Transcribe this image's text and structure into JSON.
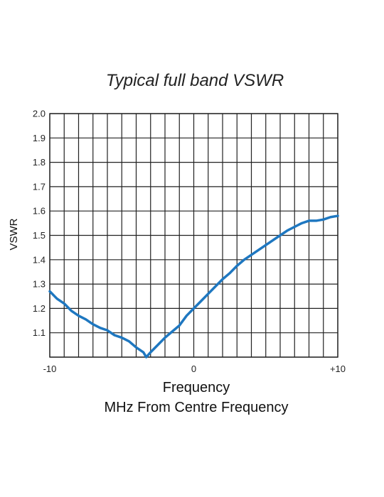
{
  "chart_data": {
    "type": "line",
    "title": "Typical full band VSWR",
    "xlabel": "Frequency",
    "xlabel_sub": "MHz From Centre Frequency",
    "ylabel": "VSWR",
    "xlim": [
      -10,
      10
    ],
    "ylim": [
      1.0,
      2.0
    ],
    "x_ticks": [
      -10,
      -9,
      -8,
      -7,
      -6,
      -5,
      -4,
      -3,
      -2,
      -1,
      0,
      1,
      2,
      3,
      4,
      5,
      6,
      7,
      8,
      9,
      10
    ],
    "x_tick_labels": [
      {
        "value": -10,
        "label": "-10"
      },
      {
        "value": 0,
        "label": "0"
      },
      {
        "value": 10,
        "label": "+10"
      }
    ],
    "y_tick_labels": [
      "2.0",
      "1.9",
      "1.8",
      "1.7",
      "1.6",
      "1.5",
      "1.4",
      "1.3",
      "1.2",
      "1.1"
    ],
    "y_tick_values": [
      2.0,
      1.9,
      1.8,
      1.7,
      1.6,
      1.5,
      1.4,
      1.3,
      1.2,
      1.1
    ],
    "grid": true,
    "line_color": "#1e77c0",
    "series": [
      {
        "x": [
          -10,
          -9.5,
          -9,
          -8.5,
          -8,
          -7.5,
          -7,
          -6.5,
          -6,
          -5.5,
          -5,
          -4.5,
          -4,
          -3.5,
          -3.3,
          -3,
          -2.5,
          -2,
          -1.5,
          -1,
          -0.5,
          0,
          0.5,
          1,
          1.5,
          2,
          2.5,
          3,
          3.5,
          4,
          4.5,
          5,
          5.5,
          6,
          6.5,
          7,
          7.5,
          8,
          8.5,
          9,
          9.5,
          10
        ],
        "y": [
          1.27,
          1.24,
          1.22,
          1.19,
          1.17,
          1.155,
          1.135,
          1.12,
          1.11,
          1.09,
          1.08,
          1.065,
          1.04,
          1.02,
          1.0,
          1.02,
          1.05,
          1.08,
          1.105,
          1.13,
          1.17,
          1.2,
          1.23,
          1.26,
          1.29,
          1.32,
          1.345,
          1.375,
          1.4,
          1.42,
          1.44,
          1.46,
          1.48,
          1.5,
          1.52,
          1.535,
          1.55,
          1.56,
          1.56,
          1.565,
          1.575,
          1.58
        ]
      }
    ]
  }
}
